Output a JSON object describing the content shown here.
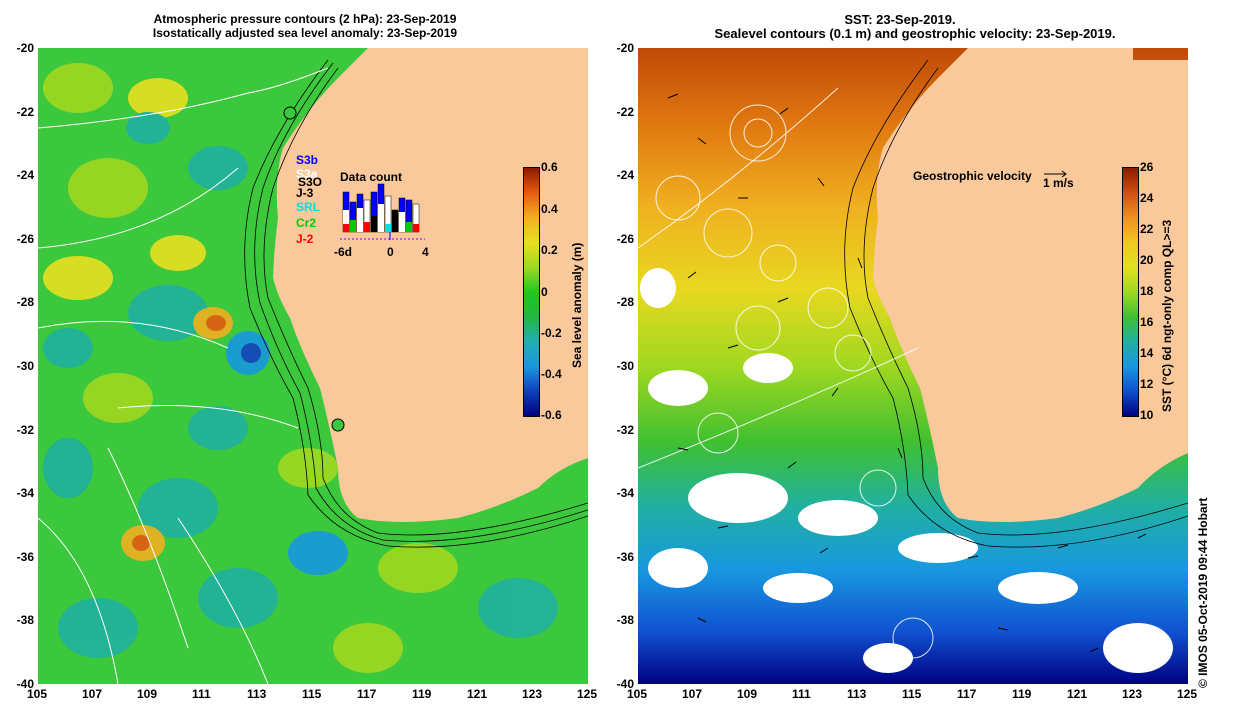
{
  "left_panel": {
    "title_line1": "Atmospheric pressure contours (2 hPa): 23-Sep-2019",
    "title_line2": "Isostatically adjusted sea level anomaly: 23-Sep-2019",
    "colorbar_label": "Sea level anomaly (m)",
    "colorbar_ticks": [
      "0.6",
      "0.4",
      "0.2",
      "0",
      "-0.2",
      "-0.4",
      "-0.6"
    ],
    "colorbar_colors": [
      "#8b1a00",
      "#e85a10",
      "#f0b020",
      "#e8e020",
      "#a0d820",
      "#20c820",
      "#20b840",
      "#20b0b0",
      "#1898e0",
      "#1040c0",
      "#000080"
    ],
    "data_count_title": "Data count",
    "data_count_axis": [
      "-6d",
      "0",
      "4"
    ],
    "satellites": [
      {
        "name": "S3b",
        "color": "#0000ff"
      },
      {
        "name": "S3a",
        "color": "#ffffff"
      },
      {
        "name": "S3O",
        "color": "#ffffff"
      },
      {
        "name": "J-3",
        "color": "#000000"
      },
      {
        "name": "SRL",
        "color": "#00e0e0"
      },
      {
        "name": "Cr2",
        "color": "#00cc00"
      },
      {
        "name": "J-2",
        "color": "#ff0000"
      }
    ],
    "land_color": "#f9c99b",
    "ocean_color": "#3cc83c"
  },
  "right_panel": {
    "title_line1": "SST: 23-Sep-2019.",
    "title_line2": "Sealevel contours (0.1 m) and geostrophic velocity: 23-Sep-2019.",
    "colorbar_label": "SST (°C) 6d ngt-only comp QL>=3",
    "colorbar_ticks": [
      "26",
      "24",
      "22",
      "20",
      "18",
      "16",
      "14",
      "12",
      "10"
    ],
    "colorbar_colors": [
      "#8b1a00",
      "#d05010",
      "#f09020",
      "#f0c820",
      "#e0e020",
      "#a0d820",
      "#40c030",
      "#20b0a0",
      "#1898e0",
      "#1050d0",
      "#000080"
    ],
    "velocity_label": "Geostrophic velocity",
    "velocity_unit": "1 m/s",
    "land_color": "#f9c99b"
  },
  "axes": {
    "x_ticks": [
      "105",
      "107",
      "109",
      "111",
      "113",
      "115",
      "117",
      "119",
      "121",
      "123",
      "125"
    ],
    "y_ticks": [
      "-20",
      "-22",
      "-24",
      "-26",
      "-28",
      "-30",
      "-32",
      "-34",
      "-36",
      "-38",
      "-40"
    ]
  },
  "credit": "© IMOS 05-Oct-2019 09:44 Hobart"
}
